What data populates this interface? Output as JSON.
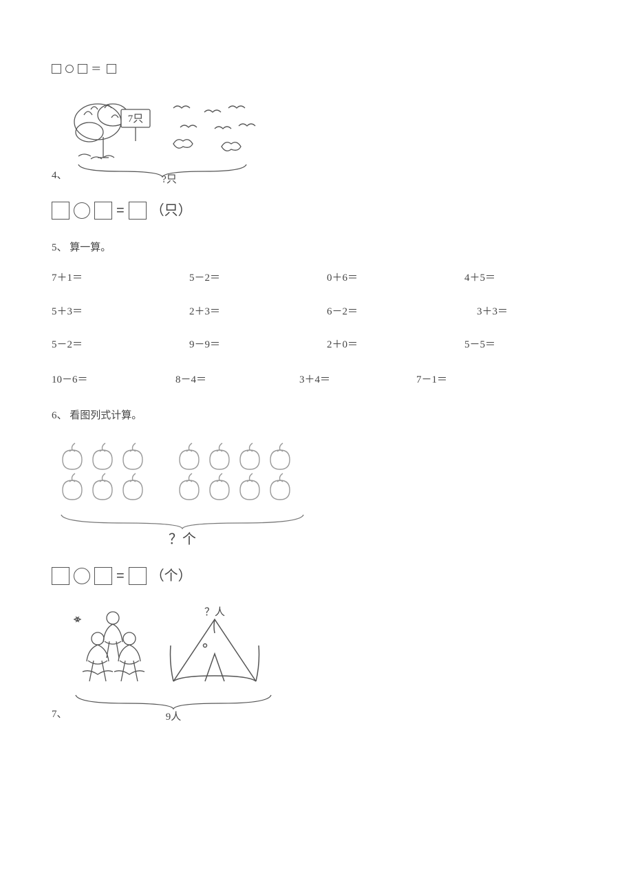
{
  "pre_equation_text": "□○□＝□",
  "q4": {
    "number": "4、",
    "tree_label": "7只",
    "brace_label": "?只",
    "eq_unit": "（只）",
    "birds_count": 6
  },
  "q5": {
    "number": "5、",
    "title": "算一算。",
    "rows": [
      [
        "7＋1＝",
        "5－2＝",
        "0＋6＝",
        "4＋5＝"
      ],
      [
        "5＋3＝",
        "2＋3＝",
        "6－2＝",
        "3＋3＝"
      ],
      [
        "5－2＝",
        "9－9＝",
        "2＋0＝",
        "5－5＝"
      ]
    ],
    "row4": [
      "10－6＝",
      "8－4＝",
      "3＋4＝",
      "7－1＝"
    ]
  },
  "q6": {
    "number": "6、",
    "title": "看图列式计算。",
    "apples_left_rows": [
      3,
      3
    ],
    "apples_right_rows": [
      4,
      4
    ],
    "brace_label": "？个",
    "eq_unit": "（个）"
  },
  "q7": {
    "number": "7、",
    "tent_label": "？人",
    "brace_label": "9人",
    "people_count": 3
  },
  "colors": {
    "text": "#454545",
    "stroke": "#555555",
    "light": "#9a9a9a",
    "bg": "#ffffff"
  }
}
